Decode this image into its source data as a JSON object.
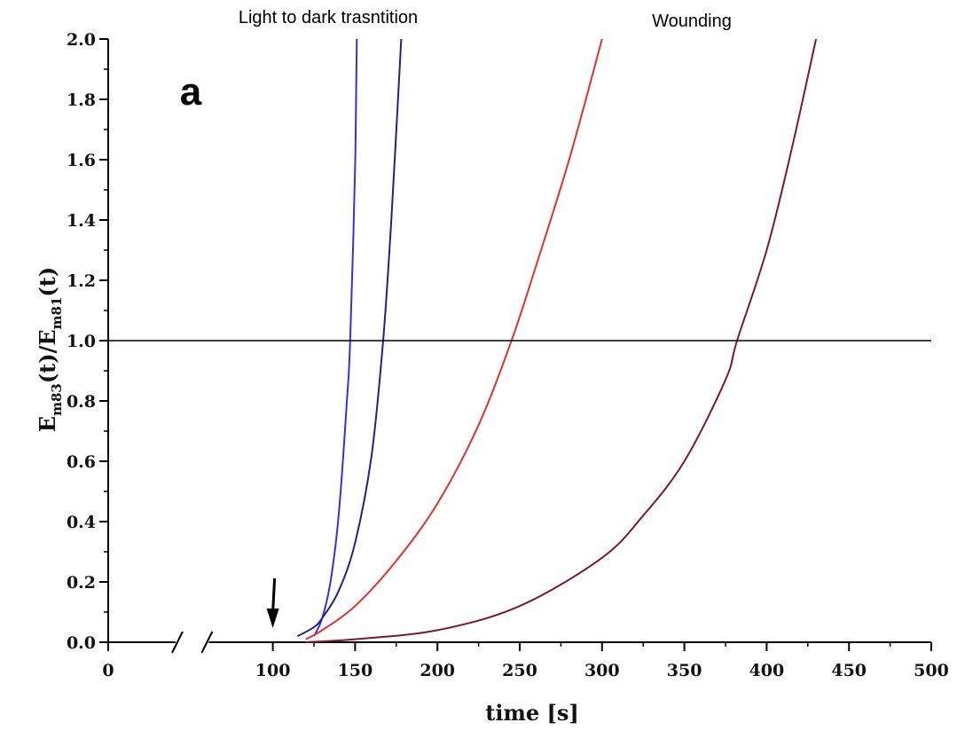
{
  "chart_data": {
    "type": "line",
    "panel_label": "a",
    "annotations": [
      "Light to dark trasntition",
      "Wounding"
    ],
    "xlabel": "time [s]",
    "ylabel": {
      "main": "E",
      "sub1": "m83",
      "mid": "(t)/E",
      "sub2": "m81",
      "end": "(t)"
    },
    "xlim": [
      0,
      500
    ],
    "ylim": [
      0.0,
      2.0
    ],
    "x_axis_break_between": [
      0,
      100
    ],
    "x_ticks": [
      0,
      100,
      150,
      200,
      250,
      300,
      350,
      400,
      450,
      500
    ],
    "x_tick_labels": [
      "0",
      "100",
      "150",
      "200",
      "250",
      "300",
      "350",
      "400",
      "450",
      "500"
    ],
    "y_ticks": [
      0.0,
      0.2,
      0.4,
      0.6,
      0.8,
      1.0,
      1.2,
      1.4,
      1.6,
      1.8,
      2.0
    ],
    "y_tick_labels": [
      "0.0",
      "0.2",
      "0.4",
      "0.6",
      "0.8",
      "1.0",
      "1.2",
      "1.4",
      "1.6",
      "1.8",
      "2.0"
    ],
    "reference_line_y": 1.0,
    "arrow_marker_x": 100,
    "grid": false,
    "series": [
      {
        "color": "#3333dd",
        "x": [
          125,
          130,
          135,
          140,
          145,
          147,
          150,
          151
        ],
        "y": [
          0.02,
          0.08,
          0.2,
          0.42,
          0.8,
          1.0,
          1.58,
          2.0
        ]
      },
      {
        "color": "#222288",
        "x": [
          115,
          125,
          130,
          140,
          150,
          160,
          167,
          172,
          178
        ],
        "y": [
          0.02,
          0.05,
          0.08,
          0.17,
          0.33,
          0.62,
          1.0,
          1.4,
          2.0
        ]
      },
      {
        "color": "#e03030",
        "x": [
          120,
          130,
          150,
          175,
          200,
          225,
          245,
          260,
          280,
          300
        ],
        "y": [
          0.01,
          0.04,
          0.12,
          0.27,
          0.46,
          0.72,
          1.0,
          1.25,
          1.6,
          2.0
        ]
      },
      {
        "color": "#7a1a2a",
        "x": [
          120,
          150,
          200,
          250,
          300,
          325,
          350,
          375,
          382,
          400,
          415,
          430
        ],
        "y": [
          0.0,
          0.01,
          0.04,
          0.12,
          0.28,
          0.42,
          0.6,
          0.87,
          1.0,
          1.3,
          1.63,
          2.0
        ]
      }
    ]
  }
}
